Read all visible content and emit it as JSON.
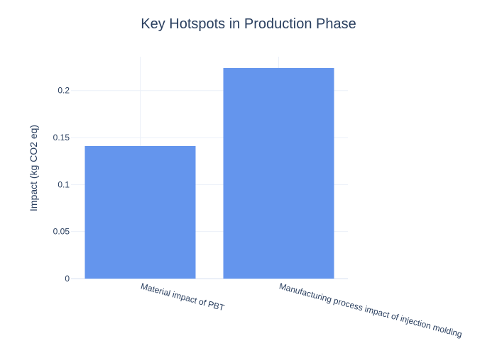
{
  "chart_data": {
    "type": "bar",
    "title": "Key Hotspots in Production Phase",
    "xlabel": "",
    "ylabel": "Impact (kg CO2 eq)",
    "categories": [
      "Material impact of PBT",
      "Manufacturing process impact of injection molding"
    ],
    "values": [
      0.141,
      0.224
    ],
    "ylim": [
      0,
      0.236
    ],
    "yticks": [
      0,
      0.05,
      0.1,
      0.15,
      0.2
    ],
    "ytick_labels": [
      "0",
      "0.05",
      "0.1",
      "0.15",
      "0.2"
    ],
    "grid": true,
    "legend": "none",
    "bar_color": "#6495ed"
  }
}
